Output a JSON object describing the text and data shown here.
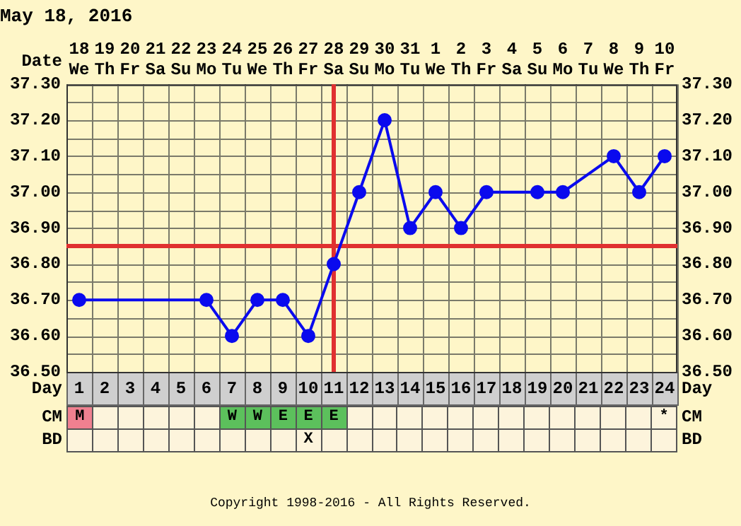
{
  "chart_data": [
    {
      "type": "line",
      "title": "May 18, 2016",
      "xlabel": "Date",
      "x2label": "Day",
      "categories": [
        "18 We",
        "19 Th",
        "20 Fr",
        "21 Sa",
        "22 Su",
        "23 Mo",
        "24 Tu",
        "25 We",
        "26 Th",
        "27 Fr",
        "28 Sa",
        "29 Su",
        "30 Mo",
        "31 Tu",
        "1 We",
        "2 Th",
        "3 Fr",
        "4 Sa",
        "5 Su",
        "6 Mo",
        "7 Tu",
        "8 We",
        "9 Th",
        "10 Fr"
      ],
      "series": [
        {
          "color": "#0a0aee",
          "values": [
            36.7,
            null,
            null,
            null,
            null,
            36.7,
            36.6,
            36.7,
            36.7,
            36.6,
            36.8,
            37.0,
            37.2,
            36.9,
            37.0,
            36.9,
            37.0,
            null,
            37.0,
            37.0,
            null,
            37.1,
            37.0,
            37.1
          ]
        }
      ],
      "x2lim": [
        0.5,
        24.5
      ],
      "x2ticks": [
        1,
        2,
        3,
        4,
        5,
        6,
        7,
        8,
        9,
        10,
        11,
        12,
        13,
        14,
        15,
        16,
        17,
        18,
        19,
        20,
        21,
        22,
        23,
        24
      ],
      "ylim": [
        36.5,
        37.3
      ],
      "yticks": [
        {
          "value": 36.5,
          "label": "36.50"
        },
        {
          "value": 36.6,
          "label": "36.60"
        },
        {
          "value": 36.7,
          "label": "36.70"
        },
        {
          "value": 36.8,
          "label": "36.80"
        },
        {
          "value": 36.9,
          "label": "36.90"
        },
        {
          "value": 37.0,
          "label": "37.00"
        },
        {
          "value": 37.1,
          "label": "37.10"
        },
        {
          "value": 37.2,
          "label": "37.20"
        },
        {
          "value": 37.3,
          "label": "37.30"
        }
      ],
      "y2lim": [
        36.5,
        37.3
      ],
      "y2ticks": [
        {
          "value": 36.5,
          "label": "36.50"
        },
        {
          "value": 36.6,
          "label": "36.60"
        },
        {
          "value": 36.7,
          "label": "36.70"
        },
        {
          "value": 36.8,
          "label": "36.80"
        },
        {
          "value": 36.9,
          "label": "36.90"
        },
        {
          "value": 37.0,
          "label": "37.00"
        },
        {
          "value": 37.1,
          "label": "37.10"
        },
        {
          "value": 37.2,
          "label": "37.20"
        },
        {
          "value": 37.3,
          "label": "37.30"
        }
      ],
      "ref_lines": [
        {
          "axis": "y",
          "value": 36.85,
          "color": "#e03030"
        },
        {
          "axis": "x",
          "value": "28 Sa",
          "color": "#e03030"
        }
      ],
      "grid": true,
      "marker": "circle",
      "line_style": "solid"
    },
    {
      "type": "heatmap",
      "categories": [
        null,
        null,
        null,
        null,
        null,
        null,
        null,
        null,
        null,
        null,
        null,
        null,
        null,
        null,
        null,
        null,
        null,
        null,
        null,
        null,
        null,
        null,
        null,
        null
      ],
      "y_categories": [
        "CM",
        "BD"
      ],
      "y2_categories": [
        "CM",
        "BD"
      ],
      "cells": [
        [
          null,
          null,
          null,
          null,
          null,
          null,
          null,
          null,
          null,
          null,
          null,
          null,
          null,
          null,
          null,
          null,
          null,
          null,
          null,
          null,
          null,
          null,
          null,
          null
        ],
        [
          null,
          null,
          null,
          null,
          null,
          null,
          null,
          null,
          null,
          null,
          null,
          null,
          null,
          null,
          null,
          null,
          null,
          null,
          null,
          null,
          null,
          null,
          null,
          null
        ]
      ],
      "cell_labels": [
        [
          "M",
          null,
          null,
          null,
          null,
          null,
          "W",
          "W",
          "E",
          "E",
          "E",
          null,
          null,
          null,
          null,
          null,
          null,
          null,
          null,
          null,
          null,
          null,
          null,
          "*"
        ],
        [
          null,
          null,
          null,
          null,
          null,
          null,
          null,
          null,
          null,
          "X",
          null,
          null,
          null,
          null,
          null,
          null,
          null,
          null,
          null,
          null,
          null,
          null,
          null,
          null
        ]
      ],
      "colors": [
        [
          "#f08090",
          null,
          null,
          null,
          null,
          null,
          "#5cc05c",
          "#5cc05c",
          "#5cc05c",
          "#5cc05c",
          "#5cc05c",
          null,
          null,
          null,
          null,
          null,
          null,
          null,
          null,
          null,
          null,
          null,
          null,
          null
        ],
        [
          null,
          null,
          null,
          null,
          null,
          null,
          null,
          null,
          null,
          null,
          null,
          null,
          null,
          null,
          null,
          null,
          null,
          null,
          null,
          null,
          null,
          null,
          null,
          null
        ]
      ],
      "annotations": [
        "Copyright 1998-2016 - All Rights Reserved."
      ]
    }
  ]
}
